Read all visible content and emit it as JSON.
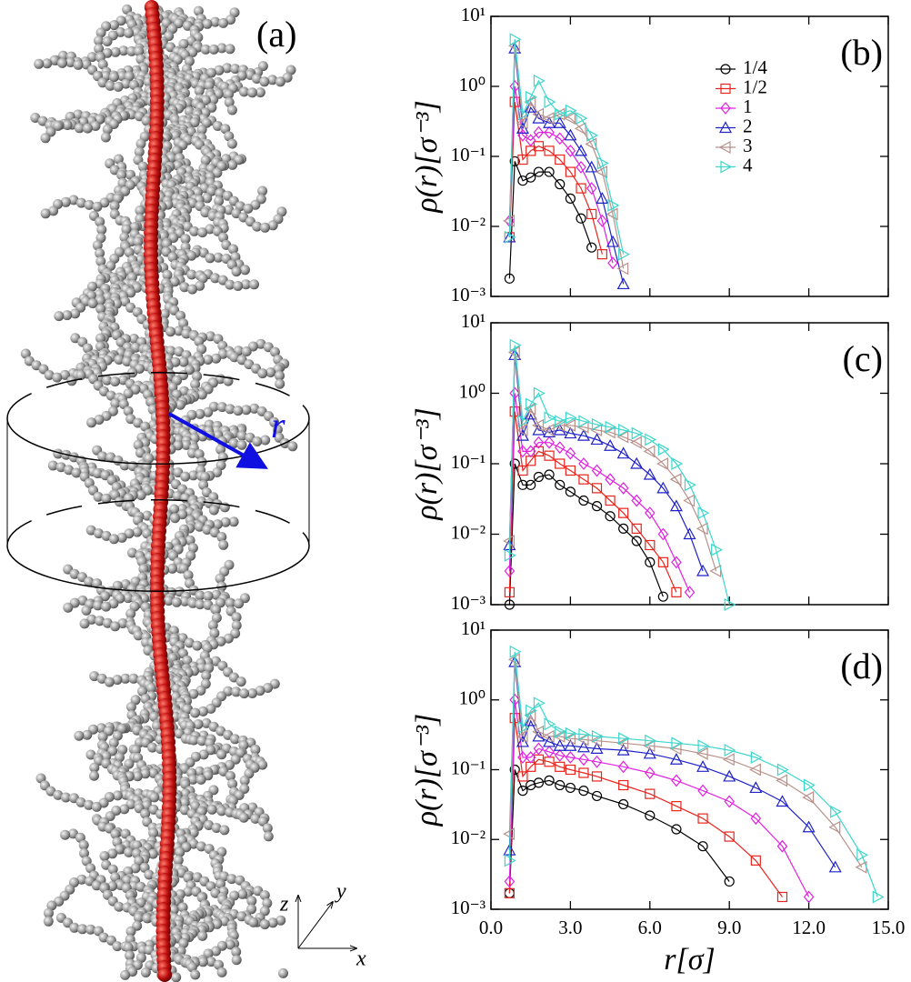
{
  "panel_a": {
    "label": "(a)",
    "vector_label": "r",
    "axis_labels": {
      "x": "x",
      "y": "y",
      "z": "z"
    }
  },
  "chart_data": [
    {
      "type": "line",
      "label": "(b)",
      "ylabel": "ρ(r)[σ⁻³]",
      "log_y": true,
      "xlim": [
        0,
        15
      ],
      "xticks": [
        0,
        3,
        6,
        9,
        12,
        15
      ],
      "xtick_labels": false,
      "ylim": [
        0.001,
        10
      ],
      "yticks": [
        {
          "value": 0.001,
          "label": "10⁻³"
        },
        {
          "value": 0.01,
          "label": "10⁻²"
        },
        {
          "value": 0.1,
          "label": "10⁻¹"
        },
        {
          "value": 1,
          "label": "10⁰"
        },
        {
          "value": 10,
          "label": "10¹"
        }
      ],
      "legend": "upper right",
      "x": [
        0.7,
        0.9,
        1.2,
        1.5,
        1.8,
        2.2,
        2.6,
        3.0,
        3.4,
        3.8,
        4.2,
        4.6,
        5.0
      ],
      "series": [
        {
          "name": "1/4",
          "color": "#000000",
          "marker": "circle",
          "values": [
            0.0018,
            0.085,
            0.045,
            0.05,
            0.06,
            0.06,
            0.04,
            0.025,
            0.013,
            0.005,
            null,
            null,
            null
          ]
        },
        {
          "name": "1/2",
          "color": "#e8241c",
          "marker": "square",
          "values": [
            0.007,
            0.6,
            0.09,
            0.12,
            0.14,
            0.12,
            0.09,
            0.06,
            0.035,
            0.015,
            0.004,
            null,
            null
          ]
        },
        {
          "name": "1",
          "color": "#e020e0",
          "marker": "diamond",
          "values": [
            0.012,
            1.0,
            0.2,
            0.17,
            0.22,
            0.22,
            0.18,
            0.12,
            0.07,
            0.035,
            0.012,
            0.003,
            null
          ]
        },
        {
          "name": "2",
          "color": "#1f22c8",
          "marker": "triangle-up",
          "values": [
            0.007,
            3.5,
            0.25,
            0.5,
            0.35,
            0.3,
            0.3,
            0.2,
            0.12,
            0.07,
            0.025,
            0.006,
            0.0015
          ]
        },
        {
          "name": "3",
          "color": "#b8908a",
          "marker": "triangle-left",
          "values": [
            0.012,
            3.8,
            0.3,
            0.6,
            0.4,
            0.35,
            0.4,
            0.35,
            0.25,
            0.15,
            0.06,
            0.015,
            0.0025
          ]
        },
        {
          "name": "4",
          "color": "#3cd6cc",
          "marker": "triangle-right",
          "values": [
            0.007,
            4.7,
            0.4,
            0.7,
            1.2,
            0.6,
            0.4,
            0.45,
            0.35,
            0.2,
            0.08,
            0.02,
            0.004
          ]
        }
      ]
    },
    {
      "type": "line",
      "label": "(c)",
      "ylabel": "ρ(r)[σ⁻³]",
      "log_y": true,
      "xlim": [
        0,
        15
      ],
      "xticks": [
        0,
        3,
        6,
        9,
        12,
        15
      ],
      "xtick_labels": false,
      "ylim": [
        0.001,
        10
      ],
      "yticks": [
        {
          "value": 0.001,
          "label": "10⁻³"
        },
        {
          "value": 0.01,
          "label": "10⁻²"
        },
        {
          "value": 0.1,
          "label": "10⁻¹"
        },
        {
          "value": 1,
          "label": "10⁰"
        },
        {
          "value": 10,
          "label": "10¹"
        }
      ],
      "x": [
        0.7,
        0.9,
        1.2,
        1.5,
        1.8,
        2.2,
        2.6,
        3.0,
        3.5,
        4.0,
        4.5,
        5.0,
        5.5,
        6.0,
        6.5,
        7.0,
        7.5,
        8.0,
        8.5,
        9.0
      ],
      "series": [
        {
          "color": "#000000",
          "marker": "circle",
          "values": [
            0.001,
            0.1,
            0.05,
            0.05,
            0.065,
            0.07,
            0.05,
            0.04,
            0.03,
            0.025,
            0.018,
            0.012,
            0.008,
            0.004,
            0.0013,
            null,
            null,
            null,
            null,
            null
          ]
        },
        {
          "color": "#e8241c",
          "marker": "square",
          "values": [
            0.0015,
            0.55,
            0.08,
            0.11,
            0.15,
            0.13,
            0.1,
            0.08,
            0.06,
            0.045,
            0.03,
            0.02,
            0.012,
            0.007,
            0.004,
            0.0015,
            null,
            null,
            null,
            null
          ]
        },
        {
          "color": "#e020e0",
          "marker": "diamond",
          "values": [
            0.003,
            1.0,
            0.15,
            0.15,
            0.2,
            0.2,
            0.17,
            0.14,
            0.1,
            0.08,
            0.06,
            0.045,
            0.03,
            0.02,
            0.01,
            0.004,
            0.0015,
            null,
            null,
            null
          ]
        },
        {
          "color": "#1f22c8",
          "marker": "triangle-up",
          "values": [
            0.007,
            3.5,
            0.25,
            0.5,
            0.3,
            0.28,
            0.3,
            0.27,
            0.25,
            0.22,
            0.18,
            0.14,
            0.1,
            0.07,
            0.045,
            0.025,
            0.01,
            0.003,
            null,
            null
          ]
        },
        {
          "color": "#b8908a",
          "marker": "triangle-left",
          "values": [
            0.008,
            3.8,
            0.3,
            0.6,
            0.35,
            0.3,
            0.35,
            0.35,
            0.33,
            0.3,
            0.28,
            0.24,
            0.2,
            0.15,
            0.1,
            0.06,
            0.03,
            0.012,
            0.003,
            null
          ]
        },
        {
          "color": "#3cd6cc",
          "marker": "triangle-right",
          "values": [
            0.005,
            4.8,
            0.4,
            0.7,
            1.0,
            0.45,
            0.4,
            0.45,
            0.4,
            0.36,
            0.33,
            0.3,
            0.27,
            0.22,
            0.16,
            0.1,
            0.05,
            0.02,
            0.006,
            0.001
          ]
        }
      ]
    },
    {
      "type": "line",
      "label": "(d)",
      "ylabel": "ρ(r)[σ⁻³]",
      "xlabel": "r[σ]",
      "log_y": true,
      "xlim": [
        0,
        15
      ],
      "xticks": [
        {
          "value": 0,
          "label": "0.0"
        },
        {
          "value": 3,
          "label": "3.0"
        },
        {
          "value": 6,
          "label": "6.0"
        },
        {
          "value": 9,
          "label": "9.0"
        },
        {
          "value": 12,
          "label": "12.0"
        },
        {
          "value": 15,
          "label": "15.0"
        }
      ],
      "ylim": [
        0.001,
        10
      ],
      "yticks": [
        {
          "value": 0.001,
          "label": "10⁻³"
        },
        {
          "value": 0.01,
          "label": "10⁻²"
        },
        {
          "value": 0.1,
          "label": "10⁻¹"
        },
        {
          "value": 1,
          "label": "10⁰"
        },
        {
          "value": 10,
          "label": "10¹"
        }
      ],
      "x": [
        0.7,
        0.9,
        1.2,
        1.5,
        1.8,
        2.2,
        2.6,
        3.0,
        3.5,
        4.0,
        5,
        6,
        7,
        8,
        9,
        10,
        11,
        12,
        13,
        14,
        14.6
      ],
      "series": [
        {
          "color": "#000000",
          "marker": "circle",
          "values": [
            0.0017,
            0.1,
            0.05,
            0.06,
            0.065,
            0.07,
            0.06,
            0.055,
            0.05,
            0.042,
            0.032,
            0.022,
            0.014,
            0.008,
            0.0025,
            null,
            null,
            null,
            null,
            null,
            null
          ]
        },
        {
          "color": "#e8241c",
          "marker": "square",
          "values": [
            0.0017,
            0.55,
            0.08,
            0.11,
            0.14,
            0.13,
            0.11,
            0.1,
            0.09,
            0.08,
            0.06,
            0.045,
            0.03,
            0.02,
            0.011,
            0.005,
            0.0015,
            null,
            null,
            null,
            null
          ]
        },
        {
          "color": "#e020e0",
          "marker": "diamond",
          "values": [
            0.0025,
            1.0,
            0.15,
            0.15,
            0.2,
            0.18,
            0.16,
            0.15,
            0.14,
            0.13,
            0.11,
            0.09,
            0.07,
            0.05,
            0.035,
            0.02,
            0.008,
            0.0015,
            null,
            null,
            null
          ]
        },
        {
          "color": "#1f22c8",
          "marker": "triangle-up",
          "values": [
            0.007,
            3.5,
            0.25,
            0.5,
            0.3,
            0.25,
            0.22,
            0.22,
            0.21,
            0.2,
            0.19,
            0.17,
            0.14,
            0.11,
            0.08,
            0.055,
            0.035,
            0.015,
            0.004,
            null,
            null
          ]
        },
        {
          "color": "#b8908a",
          "marker": "triangle-left",
          "values": [
            0.012,
            3.8,
            0.3,
            0.6,
            0.35,
            0.3,
            0.3,
            0.28,
            0.27,
            0.26,
            0.24,
            0.22,
            0.2,
            0.17,
            0.14,
            0.1,
            0.07,
            0.04,
            0.015,
            0.004,
            null
          ]
        },
        {
          "color": "#3cd6cc",
          "marker": "triangle-right",
          "values": [
            0.005,
            4.9,
            0.4,
            0.7,
            0.9,
            0.45,
            0.35,
            0.33,
            0.32,
            0.3,
            0.28,
            0.26,
            0.24,
            0.22,
            0.19,
            0.15,
            0.1,
            0.06,
            0.025,
            0.006,
            0.0015
          ]
        }
      ]
    }
  ]
}
